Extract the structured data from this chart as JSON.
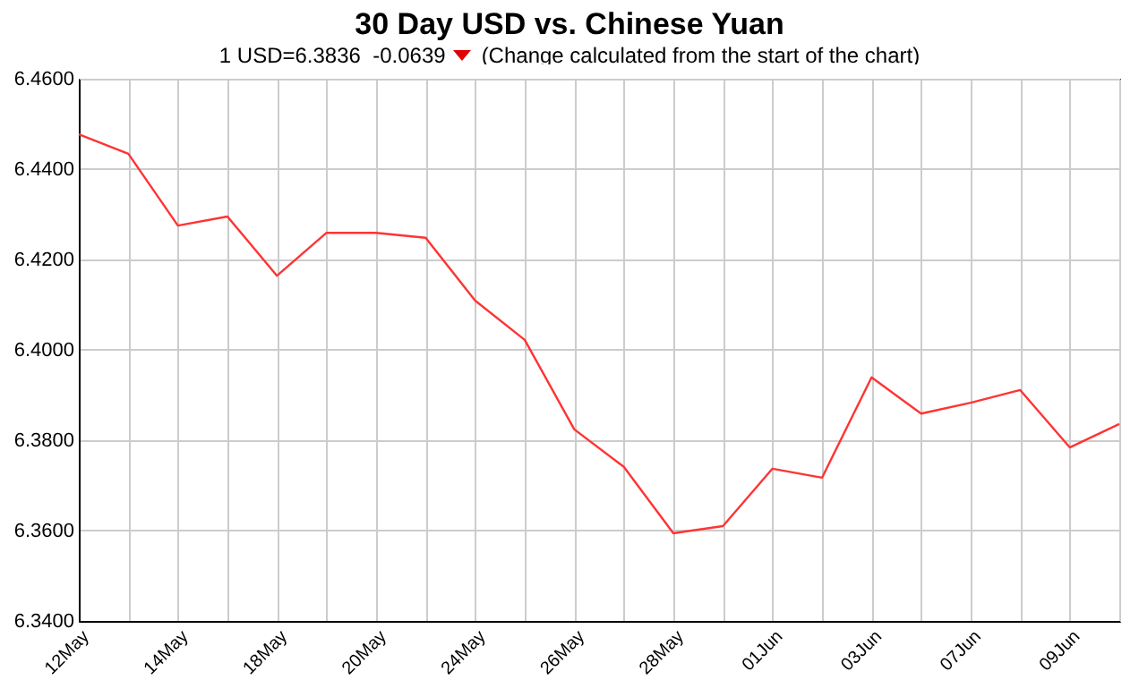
{
  "chart_data": {
    "type": "line",
    "title": "30 Day USD vs. Chinese Yuan",
    "subtitle": "1 USD=6.3836  -0.0639",
    "annotations": [
      "(Change calculated from the start of the chart)"
    ],
    "categories": [
      "12May",
      null,
      "14May",
      null,
      "18May",
      null,
      "20May",
      null,
      "24May",
      null,
      "26May",
      null,
      "28May",
      null,
      "01Jun",
      null,
      "03Jun",
      null,
      "07Jun",
      null,
      "09Jun",
      null
    ],
    "series": [
      {
        "color": "#ff3333",
        "values": [
          6.4477,
          6.4434,
          6.4275,
          6.4295,
          6.4164,
          6.4259,
          6.4259,
          6.4248,
          6.4109,
          6.4022,
          6.3824,
          6.3741,
          6.3594,
          6.361,
          6.3737,
          6.3717,
          6.3939,
          6.3859,
          6.3883,
          6.3911,
          6.3784,
          6.3836
        ]
      }
    ],
    "ylim": [
      6.34,
      6.46
    ],
    "yticks": [
      {
        "value": 6.34,
        "label": "6.3400"
      },
      {
        "value": 6.36,
        "label": "6.3600"
      },
      {
        "value": 6.38,
        "label": "6.3800"
      },
      {
        "value": 6.4,
        "label": "6.4000"
      },
      {
        "value": 6.42,
        "label": "6.4200"
      },
      {
        "value": 6.44,
        "label": "6.4400"
      },
      {
        "value": 6.46,
        "label": "6.4600"
      }
    ],
    "grid": true,
    "marker": "none",
    "line_style": "solid"
  }
}
